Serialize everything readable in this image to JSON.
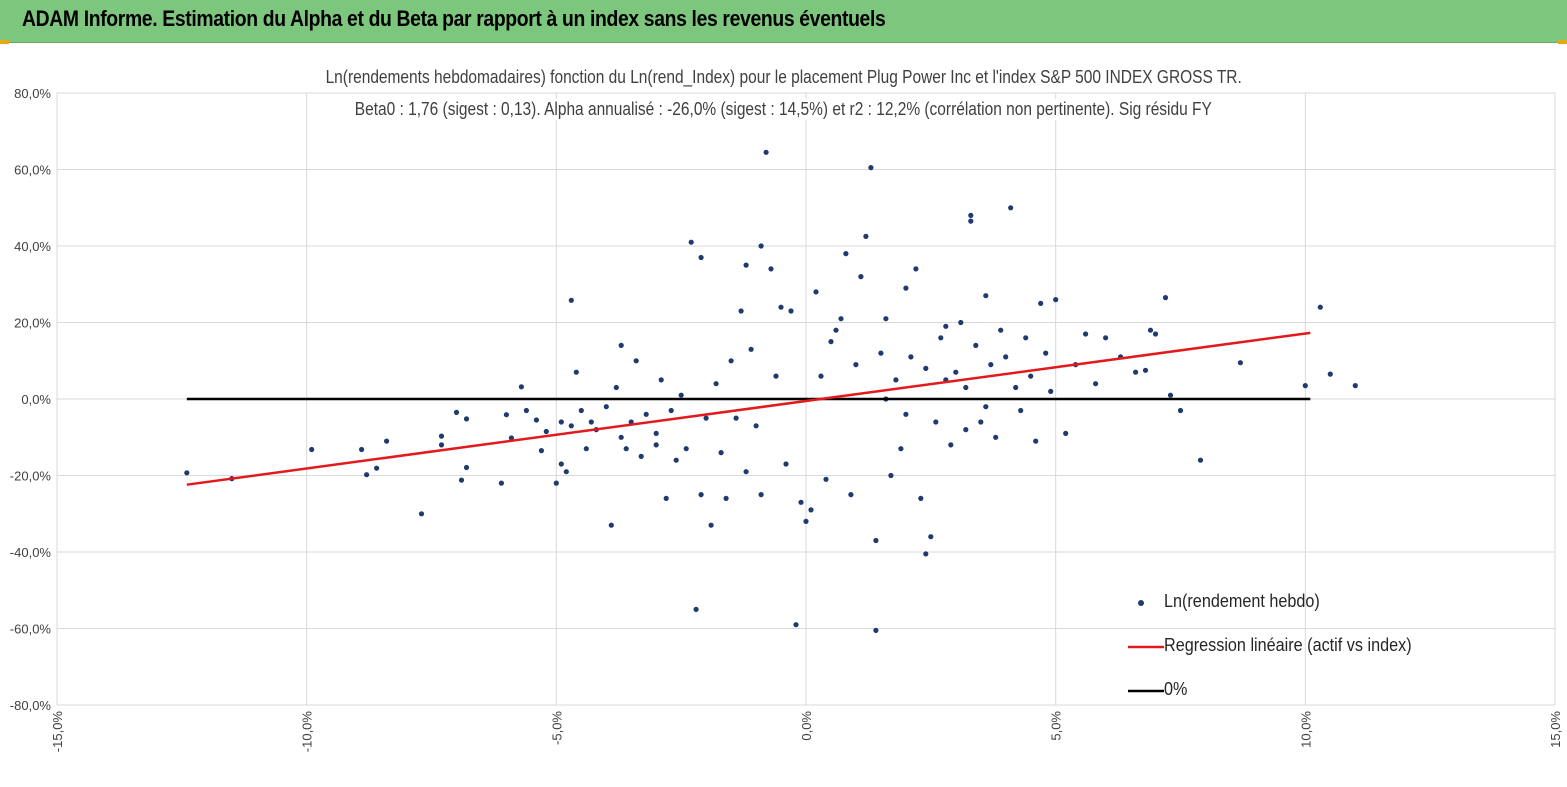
{
  "header": {
    "title": "ADAM Informe. Estimation du Alpha et du Beta par rapport à un index sans les revenus éventuels"
  },
  "colors": {
    "header_bg": "#7dc67d",
    "corner_accent": "#e6a817",
    "points": "#1f3a6e",
    "regression": "#e31a1c",
    "zero_line": "#000000",
    "grid": "#d9d9d9"
  },
  "chart_data": {
    "type": "scatter",
    "title": "Ln(rendements hebdomadaires) fonction du Ln(rend_Index) pour le placement Plug Power Inc et l'index S&P 500 INDEX GROSS TR.",
    "subtitle": "Beta0 : 1,76 (sigest : 0,13). Alpha annualisé : -26,0% (sigest : 14,5%) et r2 : 12,2% (corrélation non pertinente). Sig résidu FY",
    "xlim": [
      -0.15,
      0.15
    ],
    "ylim": [
      -0.8,
      0.8
    ],
    "x_ticks": [
      -0.15,
      -0.1,
      -0.05,
      0.0,
      0.05,
      0.1,
      0.15
    ],
    "x_tick_labels": [
      "-15,0%",
      "-10,0%",
      "-5,0%",
      "0,0%",
      "5,0%",
      "10,0%",
      "15,0%"
    ],
    "y_ticks": [
      0.8,
      0.6,
      0.4,
      0.2,
      0.0,
      -0.2,
      -0.4,
      -0.6,
      -0.8
    ],
    "y_tick_labels": [
      "80,0%",
      "60,0%",
      "40,0%",
      "20,0%",
      "0,0%",
      "-20,0%",
      "-40,0%",
      "-60,0%",
      "-80,0%"
    ],
    "grid": "vertical-and-horizontal",
    "legend_position": "bottom-right",
    "series": [
      {
        "name": "Ln(rendement hebdo)",
        "type": "scatter",
        "points": [
          [
            -0.124,
            -0.193
          ],
          [
            -0.115,
            -0.208
          ],
          [
            -0.099,
            -0.132
          ],
          [
            -0.089,
            -0.132
          ],
          [
            -0.088,
            -0.198
          ],
          [
            -0.086,
            -0.181
          ],
          [
            -0.084,
            -0.11
          ],
          [
            -0.077,
            -0.3
          ],
          [
            -0.073,
            -0.097
          ],
          [
            -0.073,
            -0.12
          ],
          [
            -0.07,
            -0.035
          ],
          [
            -0.069,
            -0.212
          ],
          [
            -0.068,
            -0.179
          ],
          [
            -0.068,
            -0.052
          ],
          [
            -0.061,
            -0.22
          ],
          [
            -0.06,
            -0.041
          ],
          [
            -0.059,
            -0.102
          ],
          [
            -0.057,
            0.032
          ],
          [
            -0.056,
            -0.03
          ],
          [
            -0.054,
            -0.055
          ],
          [
            -0.053,
            -0.135
          ],
          [
            -0.052,
            -0.085
          ],
          [
            -0.049,
            -0.17
          ],
          [
            -0.05,
            -0.22
          ],
          [
            -0.049,
            -0.06
          ],
          [
            -0.048,
            -0.19
          ],
          [
            -0.047,
            0.258
          ],
          [
            -0.047,
            -0.07
          ],
          [
            -0.046,
            0.07
          ],
          [
            -0.045,
            -0.03
          ],
          [
            -0.044,
            -0.13
          ],
          [
            -0.043,
            -0.06
          ],
          [
            -0.042,
            -0.08
          ],
          [
            -0.04,
            -0.02
          ],
          [
            -0.039,
            -0.33
          ],
          [
            -0.038,
            0.03
          ],
          [
            -0.037,
            0.14
          ],
          [
            -0.037,
            -0.1
          ],
          [
            -0.036,
            -0.13
          ],
          [
            -0.035,
            -0.06
          ],
          [
            -0.034,
            0.1
          ],
          [
            -0.033,
            -0.15
          ],
          [
            -0.032,
            -0.04
          ],
          [
            -0.03,
            -0.12
          ],
          [
            -0.03,
            -0.09
          ],
          [
            -0.029,
            0.05
          ],
          [
            -0.028,
            -0.26
          ],
          [
            -0.027,
            -0.03
          ],
          [
            -0.026,
            -0.16
          ],
          [
            -0.025,
            0.01
          ],
          [
            -0.024,
            -0.13
          ],
          [
            -0.023,
            0.41
          ],
          [
            -0.022,
            -0.55
          ],
          [
            -0.021,
            0.37
          ],
          [
            -0.021,
            -0.25
          ],
          [
            -0.02,
            -0.05
          ],
          [
            -0.019,
            -0.33
          ],
          [
            -0.018,
            0.04
          ],
          [
            -0.017,
            -0.14
          ],
          [
            -0.016,
            -0.26
          ],
          [
            -0.015,
            0.1
          ],
          [
            -0.014,
            -0.05
          ],
          [
            -0.013,
            0.23
          ],
          [
            -0.012,
            0.35
          ],
          [
            -0.012,
            -0.19
          ],
          [
            -0.011,
            0.13
          ],
          [
            -0.01,
            -0.07
          ],
          [
            -0.009,
            0.4
          ],
          [
            -0.009,
            -0.25
          ],
          [
            -0.008,
            0.645
          ],
          [
            -0.007,
            0.34
          ],
          [
            -0.006,
            0.06
          ],
          [
            -0.005,
            0.24
          ],
          [
            -0.004,
            -0.17
          ],
          [
            -0.003,
            0.23
          ],
          [
            -0.002,
            -0.59
          ],
          [
            -0.001,
            -0.27
          ],
          [
            0.0,
            -0.32
          ],
          [
            0.001,
            -0.29
          ],
          [
            0.002,
            0.28
          ],
          [
            0.003,
            0.06
          ],
          [
            0.004,
            -0.21
          ],
          [
            0.005,
            0.15
          ],
          [
            0.006,
            0.18
          ],
          [
            0.007,
            0.21
          ],
          [
            0.008,
            0.38
          ],
          [
            0.009,
            -0.25
          ],
          [
            0.01,
            0.09
          ],
          [
            0.011,
            0.32
          ],
          [
            0.012,
            0.425
          ],
          [
            0.013,
            0.605
          ],
          [
            0.014,
            -0.37
          ],
          [
            0.014,
            -0.605
          ],
          [
            0.015,
            0.12
          ],
          [
            0.016,
            0.21
          ],
          [
            0.017,
            -0.2
          ],
          [
            0.018,
            0.05
          ],
          [
            0.019,
            -0.13
          ],
          [
            0.02,
            0.29
          ],
          [
            0.021,
            0.11
          ],
          [
            0.022,
            0.34
          ],
          [
            0.023,
            -0.26
          ],
          [
            0.024,
            -0.405
          ],
          [
            0.025,
            -0.36
          ],
          [
            0.026,
            -0.06
          ],
          [
            0.027,
            0.16
          ],
          [
            0.028,
            0.19
          ],
          [
            0.029,
            -0.12
          ],
          [
            0.03,
            0.07
          ],
          [
            0.031,
            0.2
          ],
          [
            0.032,
            -0.08
          ],
          [
            0.033,
            0.48
          ],
          [
            0.033,
            0.465
          ],
          [
            0.034,
            0.14
          ],
          [
            0.035,
            -0.06
          ],
          [
            0.036,
            0.27
          ],
          [
            0.037,
            0.09
          ],
          [
            0.038,
            -0.1
          ],
          [
            0.039,
            0.18
          ],
          [
            0.04,
            0.11
          ],
          [
            0.041,
            0.5
          ],
          [
            0.042,
            0.03
          ],
          [
            0.043,
            -0.03
          ],
          [
            0.044,
            0.16
          ],
          [
            0.045,
            0.06
          ],
          [
            0.046,
            -0.11
          ],
          [
            0.047,
            0.25
          ],
          [
            0.048,
            0.12
          ],
          [
            0.049,
            0.02
          ],
          [
            0.05,
            0.26
          ],
          [
            0.052,
            -0.09
          ],
          [
            0.054,
            0.09
          ],
          [
            0.056,
            0.17
          ],
          [
            0.058,
            0.04
          ],
          [
            0.06,
            0.16
          ],
          [
            0.063,
            0.11
          ],
          [
            0.066,
            0.07
          ],
          [
            0.068,
            0.075
          ],
          [
            0.069,
            0.18
          ],
          [
            0.07,
            0.17
          ],
          [
            0.072,
            0.265
          ],
          [
            0.073,
            0.01
          ],
          [
            0.075,
            -0.03
          ],
          [
            0.079,
            -0.16
          ],
          [
            0.087,
            0.095
          ],
          [
            0.1,
            0.035
          ],
          [
            0.103,
            0.24
          ],
          [
            0.105,
            0.065
          ],
          [
            0.11,
            0.035
          ],
          [
            0.028,
            0.05
          ],
          [
            0.032,
            0.03
          ],
          [
            0.036,
            -0.02
          ],
          [
            0.024,
            0.08
          ],
          [
            0.02,
            -0.04
          ],
          [
            0.016,
            0.0
          ]
        ]
      },
      {
        "name": "Regression linéaire (actif vs index)",
        "type": "line",
        "x": [
          -0.124,
          0.101
        ],
        "y": [
          -0.224,
          0.173
        ]
      },
      {
        "name": "0%",
        "type": "line",
        "x": [
          -0.124,
          0.101
        ],
        "y": [
          0.0,
          0.0
        ]
      }
    ]
  }
}
